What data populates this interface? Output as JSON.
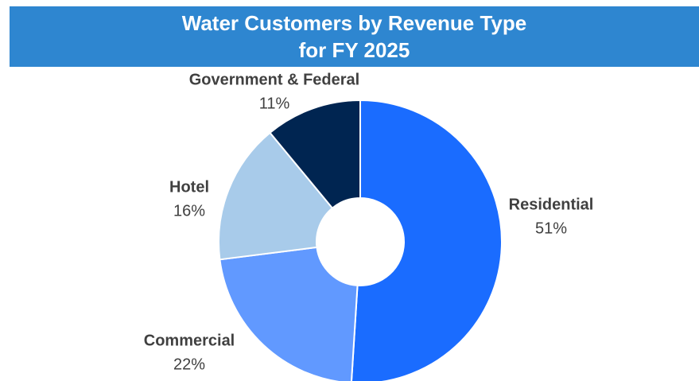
{
  "chart_data": {
    "type": "donut",
    "title": "Water Customers by Revenue Type\nfor FY 2025",
    "categories": [
      "Residential",
      "Commercial",
      "Hotel",
      "Government & Federal"
    ],
    "values": [
      51,
      22,
      16,
      11
    ],
    "value_labels": [
      "51%",
      "22%",
      "16%",
      "11%"
    ],
    "colors": [
      "#1a6cff",
      "#6199ff",
      "#a8cbea",
      "#002551"
    ]
  }
}
